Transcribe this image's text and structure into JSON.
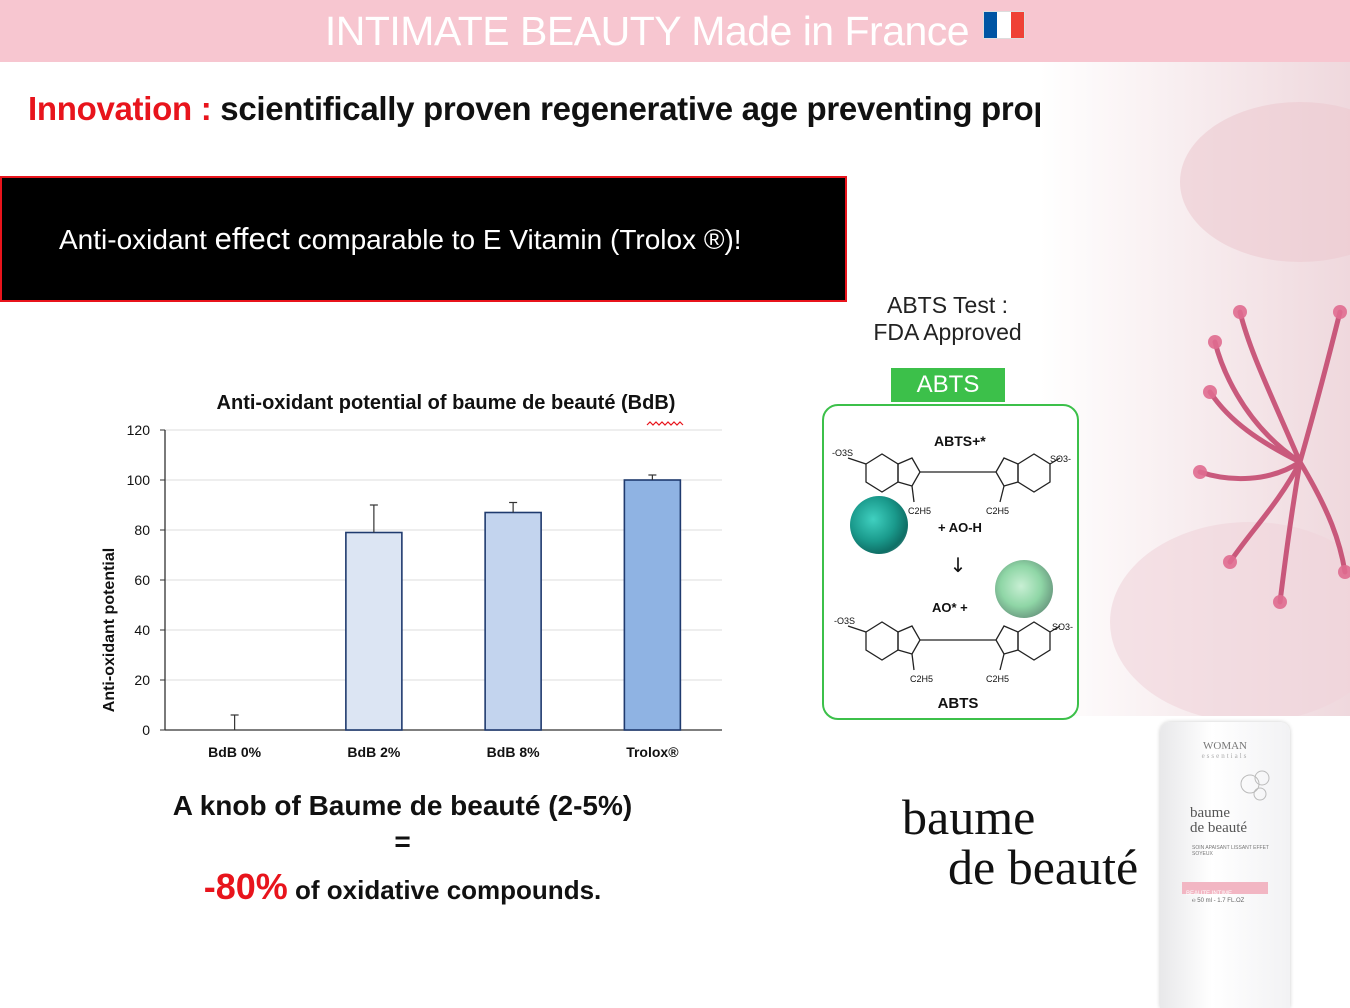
{
  "header": {
    "title": "INTIMATE BEAUTY Made in France",
    "flag_colors": [
      "#0055a4",
      "#ffffff",
      "#ef4135"
    ]
  },
  "headline": {
    "accent": "Innovation :",
    "text": "scientifically proven regenerative age preventing properties."
  },
  "banner": {
    "part1": "Anti-oxidant ",
    "part2": "effect",
    "part3": " comparable to E Vitamin (Trolox ®)!"
  },
  "abts": {
    "test_line1": "ABTS Test :",
    "test_line2": "FDA Approved",
    "badge": "ABTS",
    "radical_label": "ABTS+*",
    "reagent": "+ AO-H",
    "product": "AO* +",
    "final_label": "ABTS",
    "left_group": "-O3S",
    "right_group": "SO3-",
    "substituent": "C2H5"
  },
  "chart_data": {
    "type": "bar",
    "title": "Anti-oxidant potential of baume de beauté (BdB)",
    "xlabel": "",
    "ylabel": "Anti-oxidant potential",
    "categories": [
      "BdB 0%",
      "BdB 2%",
      "BdB 8%",
      "Trolox®"
    ],
    "values": [
      0,
      79,
      87,
      100
    ],
    "errors": [
      6,
      11,
      4,
      2
    ],
    "bar_colors": [
      "#ffffff",
      "#dce5f3",
      "#c3d4ee",
      "#8fb3e3"
    ],
    "ylim": [
      0,
      120
    ],
    "yticks": [
      0,
      20,
      40,
      60,
      80,
      100,
      120
    ],
    "grid": true
  },
  "summary": {
    "line1": "A knob of Baume de beauté (2-5%)",
    "line2": "=",
    "pct": "-80%",
    "line3": " of oxidative compounds."
  },
  "brand": {
    "line1": "baume",
    "line2": "de beauté"
  },
  "product": {
    "brand": "WOMAN",
    "sub": "essentials",
    "name1": "baume",
    "name2": "de beauté",
    "desc": "SOIN APAISANT LISSANT EFFET SOYEUX",
    "band": "BEAUTE INTIME",
    "volume": "℮ 50 ml - 1.7 FL.OZ"
  }
}
